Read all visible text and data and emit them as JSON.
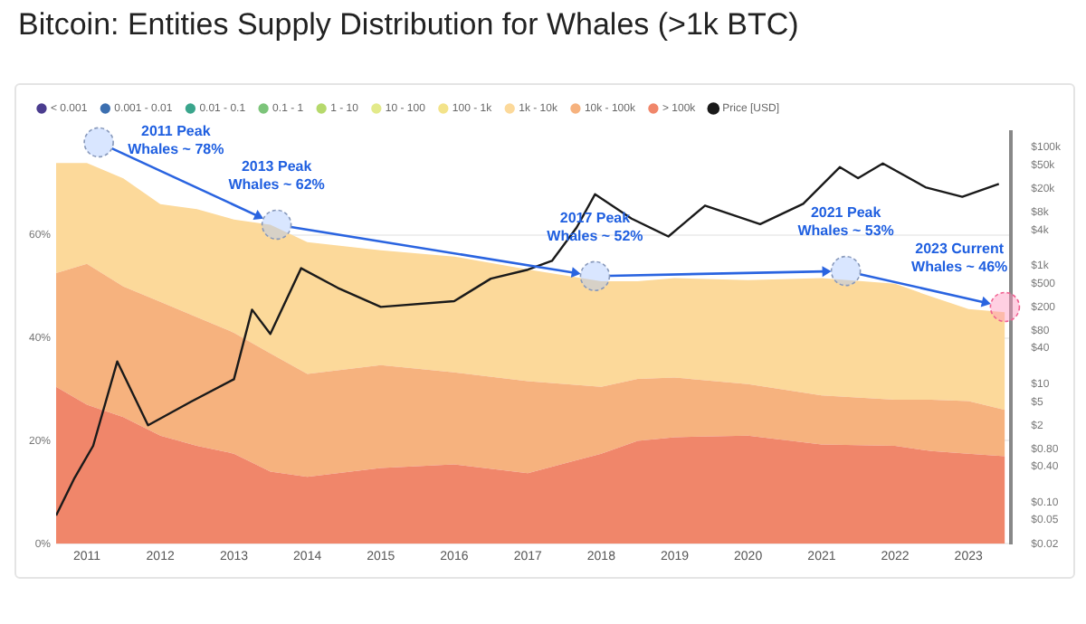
{
  "chart_data": {
    "type": "area",
    "title": "Bitcoin: Entities Supply Distribution for Whales (>1k BTC)",
    "x": [
      "2010-08",
      "2011-01",
      "2011-07",
      "2012-01",
      "2012-07",
      "2013-01",
      "2013-07",
      "2014-01",
      "2015-01",
      "2016-01",
      "2017-01",
      "2018-01",
      "2018-07",
      "2019-01",
      "2020-01",
      "2021-01",
      "2022-01",
      "2022-07",
      "2023-01",
      "2023-07"
    ],
    "stacked": true,
    "legend": "top left",
    "grid": "y",
    "marker": "none",
    "series": [
      {
        "name": "> 100k",
        "color": "#f0866a",
        "values": [
          30.5,
          27,
          24.6,
          21,
          19,
          17.5,
          14,
          13,
          14.7,
          15.4,
          13.7,
          17.5,
          20,
          20.7,
          21,
          19.3,
          19,
          18,
          17.5,
          17
        ]
      },
      {
        "name": "10k - 100k",
        "color": "#f6b27e",
        "values": [
          22.1,
          27.4,
          25.4,
          26,
          25,
          23.5,
          23,
          20,
          20,
          17.9,
          17.9,
          13,
          12,
          11.6,
          10,
          9.5,
          9,
          10,
          10.2,
          9
        ]
      },
      {
        "name": "1k - 10k",
        "color": "#fcd99a",
        "values": [
          21.4,
          19.6,
          21,
          19,
          21,
          22,
          25,
          25.6,
          22.3,
          22.5,
          21.7,
          20.5,
          19,
          19.3,
          20.2,
          22.8,
          22.5,
          20,
          17.9,
          19
        ]
      },
      {
        "name": "100 - 1k",
        "color": "#f3e38a",
        "values": [
          null,
          null,
          null,
          null,
          null,
          null,
          null,
          null,
          null,
          null,
          null,
          null,
          null,
          null,
          null,
          null,
          null,
          null,
          null,
          null
        ]
      },
      {
        "name": "10 - 100",
        "color": "#e3ea8a",
        "values": [
          null,
          null,
          null,
          null,
          null,
          null,
          null,
          null,
          null,
          null,
          null,
          null,
          null,
          null,
          null,
          null,
          null,
          null,
          null,
          null
        ]
      },
      {
        "name": "1 - 10",
        "color": "#b6d96c",
        "values": [
          null,
          null,
          null,
          null,
          null,
          null,
          null,
          null,
          null,
          null,
          null,
          null,
          null,
          null,
          null,
          null,
          null,
          null,
          null,
          null
        ]
      },
      {
        "name": "0.1 - 1",
        "color": "#7cc47a",
        "values": [
          null,
          null,
          null,
          null,
          null,
          null,
          null,
          null,
          null,
          null,
          null,
          null,
          null,
          null,
          null,
          null,
          null,
          null,
          null,
          null
        ]
      },
      {
        "name": "0.01 - 0.1",
        "color": "#3aa58c",
        "values": [
          null,
          null,
          null,
          null,
          null,
          null,
          null,
          null,
          null,
          null,
          null,
          null,
          null,
          null,
          null,
          null,
          null,
          null,
          null,
          null
        ]
      },
      {
        "name": "0.001 - 0.01",
        "color": "#3c6fb0",
        "values": [
          null,
          null,
          null,
          null,
          null,
          null,
          null,
          null,
          null,
          null,
          null,
          null,
          null,
          null,
          null,
          null,
          null,
          null,
          null,
          null
        ]
      },
      {
        "name": "< 0.001",
        "color": "#4b3d8f",
        "values": [
          null,
          null,
          null,
          null,
          null,
          null,
          null,
          null,
          null,
          null,
          null,
          null,
          null,
          null,
          null,
          null,
          null,
          null,
          null,
          null
        ]
      },
      {
        "name": "Price [USD]",
        "type": "line",
        "axis": "y2",
        "color": "#1a1a1a",
        "x": [
          "2010-08",
          "2010-11",
          "2011-02",
          "2011-06",
          "2011-11",
          "2012-06",
          "2013-01",
          "2013-04",
          "2013-07",
          "2013-12",
          "2014-06",
          "2015-01",
          "2016-01",
          "2016-07",
          "2017-01",
          "2017-05",
          "2017-09",
          "2017-12",
          "2018-06",
          "2018-12",
          "2019-06",
          "2020-03",
          "2020-10",
          "2021-04",
          "2021-07",
          "2021-11",
          "2022-06",
          "2022-12",
          "2023-06"
        ],
        "values": [
          0.06,
          0.26,
          0.9,
          24,
          2,
          5,
          12,
          180,
          70,
          900,
          420,
          200,
          250,
          600,
          850,
          1200,
          4400,
          16000,
          6200,
          3100,
          10300,
          5000,
          11000,
          46000,
          30000,
          53000,
          21000,
          14500,
          24000
        ]
      }
    ],
    "xlim": [
      "2010-08",
      "2023-08"
    ],
    "xticks": [
      "2011",
      "2012",
      "2013",
      "2014",
      "2015",
      "2016",
      "2017",
      "2018",
      "2019",
      "2020",
      "2021",
      "2022",
      "2023"
    ],
    "ylim": [
      0,
      80
    ],
    "yticks": [
      {
        "value": 0,
        "label": "0%"
      },
      {
        "value": 20,
        "label": "20%"
      },
      {
        "value": 40,
        "label": "40%"
      },
      {
        "value": 60,
        "label": "60%"
      }
    ],
    "log": "y2",
    "y2lim": [
      0.02,
      180000
    ],
    "y2ticks": [
      {
        "value": 0.02,
        "label": "$0.02"
      },
      {
        "value": 0.05,
        "label": "$0.05"
      },
      {
        "value": 0.1,
        "label": "$0.10"
      },
      {
        "value": 0.4,
        "label": "$0.40"
      },
      {
        "value": 0.8,
        "label": "$0.80"
      },
      {
        "value": 2,
        "label": "$2"
      },
      {
        "value": 5,
        "label": "$5"
      },
      {
        "value": 10,
        "label": "$10"
      },
      {
        "value": 40,
        "label": "$40"
      },
      {
        "value": 80,
        "label": "$80"
      },
      {
        "value": 200,
        "label": "$200"
      },
      {
        "value": 500,
        "label": "$500"
      },
      {
        "value": 1000,
        "label": "$1k"
      },
      {
        "value": 4000,
        "label": "$4k"
      },
      {
        "value": 8000,
        "label": "$8k"
      },
      {
        "value": 20000,
        "label": "$20k"
      },
      {
        "value": 50000,
        "label": "$50k"
      },
      {
        "value": 100000,
        "label": "$100k"
      }
    ],
    "annotations": [
      {
        "text": "2011 Peak\nWhales ~ 78%",
        "x": "2011-03",
        "y": 78
      },
      {
        "text": "2013 Peak\nWhales ~ 62%",
        "x": "2013-08",
        "y": 62
      },
      {
        "text": "2017 Peak\nWhales ~ 52%",
        "x": "2017-12",
        "y": 52
      },
      {
        "text": "2021 Peak\nWhales ~ 53%",
        "x": "2021-05",
        "y": 53
      },
      {
        "text": "2023 Current\nWhales ~ 46%",
        "x": "2023-07",
        "y": 46
      }
    ]
  }
}
